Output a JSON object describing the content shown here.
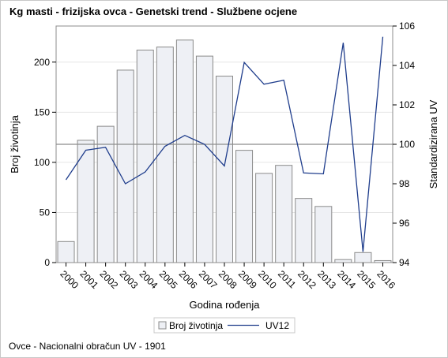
{
  "title": "Kg masti - frizijska ovca - Genetski trend - Službene ocjene",
  "footnote": "Ovce - Nacionalni obračun UV - 1901",
  "chart_data": {
    "type": "bar",
    "categories": [
      "2000",
      "2001",
      "2002",
      "2003",
      "2004",
      "2005",
      "2006",
      "2007",
      "2008",
      "2009",
      "2010",
      "2011",
      "2012",
      "2013",
      "2014",
      "2015",
      "2016"
    ],
    "xlabel": "Godina rođenja",
    "series": [
      {
        "name": "Broj životinja",
        "type": "bar",
        "axis": "left",
        "values": [
          21,
          122,
          136,
          192,
          212,
          215,
          222,
          206,
          186,
          112,
          89,
          97,
          64,
          56,
          3,
          10,
          2
        ]
      },
      {
        "name": "UV12",
        "type": "line",
        "axis": "right",
        "values": [
          98.2,
          99.7,
          99.85,
          98.0,
          98.6,
          99.9,
          100.45,
          100.0,
          98.9,
          104.15,
          103.05,
          103.25,
          98.55,
          98.5,
          105.15,
          94.55,
          105.45
        ]
      }
    ],
    "y_left": {
      "label": "Broj životinja",
      "range": [
        0,
        236
      ],
      "ticks": [
        0,
        50,
        100,
        150,
        200
      ]
    },
    "y_right": {
      "label": "Standardizirana UV",
      "range": [
        94,
        106
      ],
      "ticks": [
        94,
        96,
        98,
        100,
        102,
        104,
        106
      ]
    },
    "reference_line": 100,
    "grid": true,
    "legend_position": "bottom",
    "colors": {
      "bar_fill": "#eef0f5",
      "bar_stroke": "#8a8a8a",
      "line": "#1f3d8c",
      "grid": "#e6e6e6",
      "reference": "#8c8c8c"
    }
  }
}
